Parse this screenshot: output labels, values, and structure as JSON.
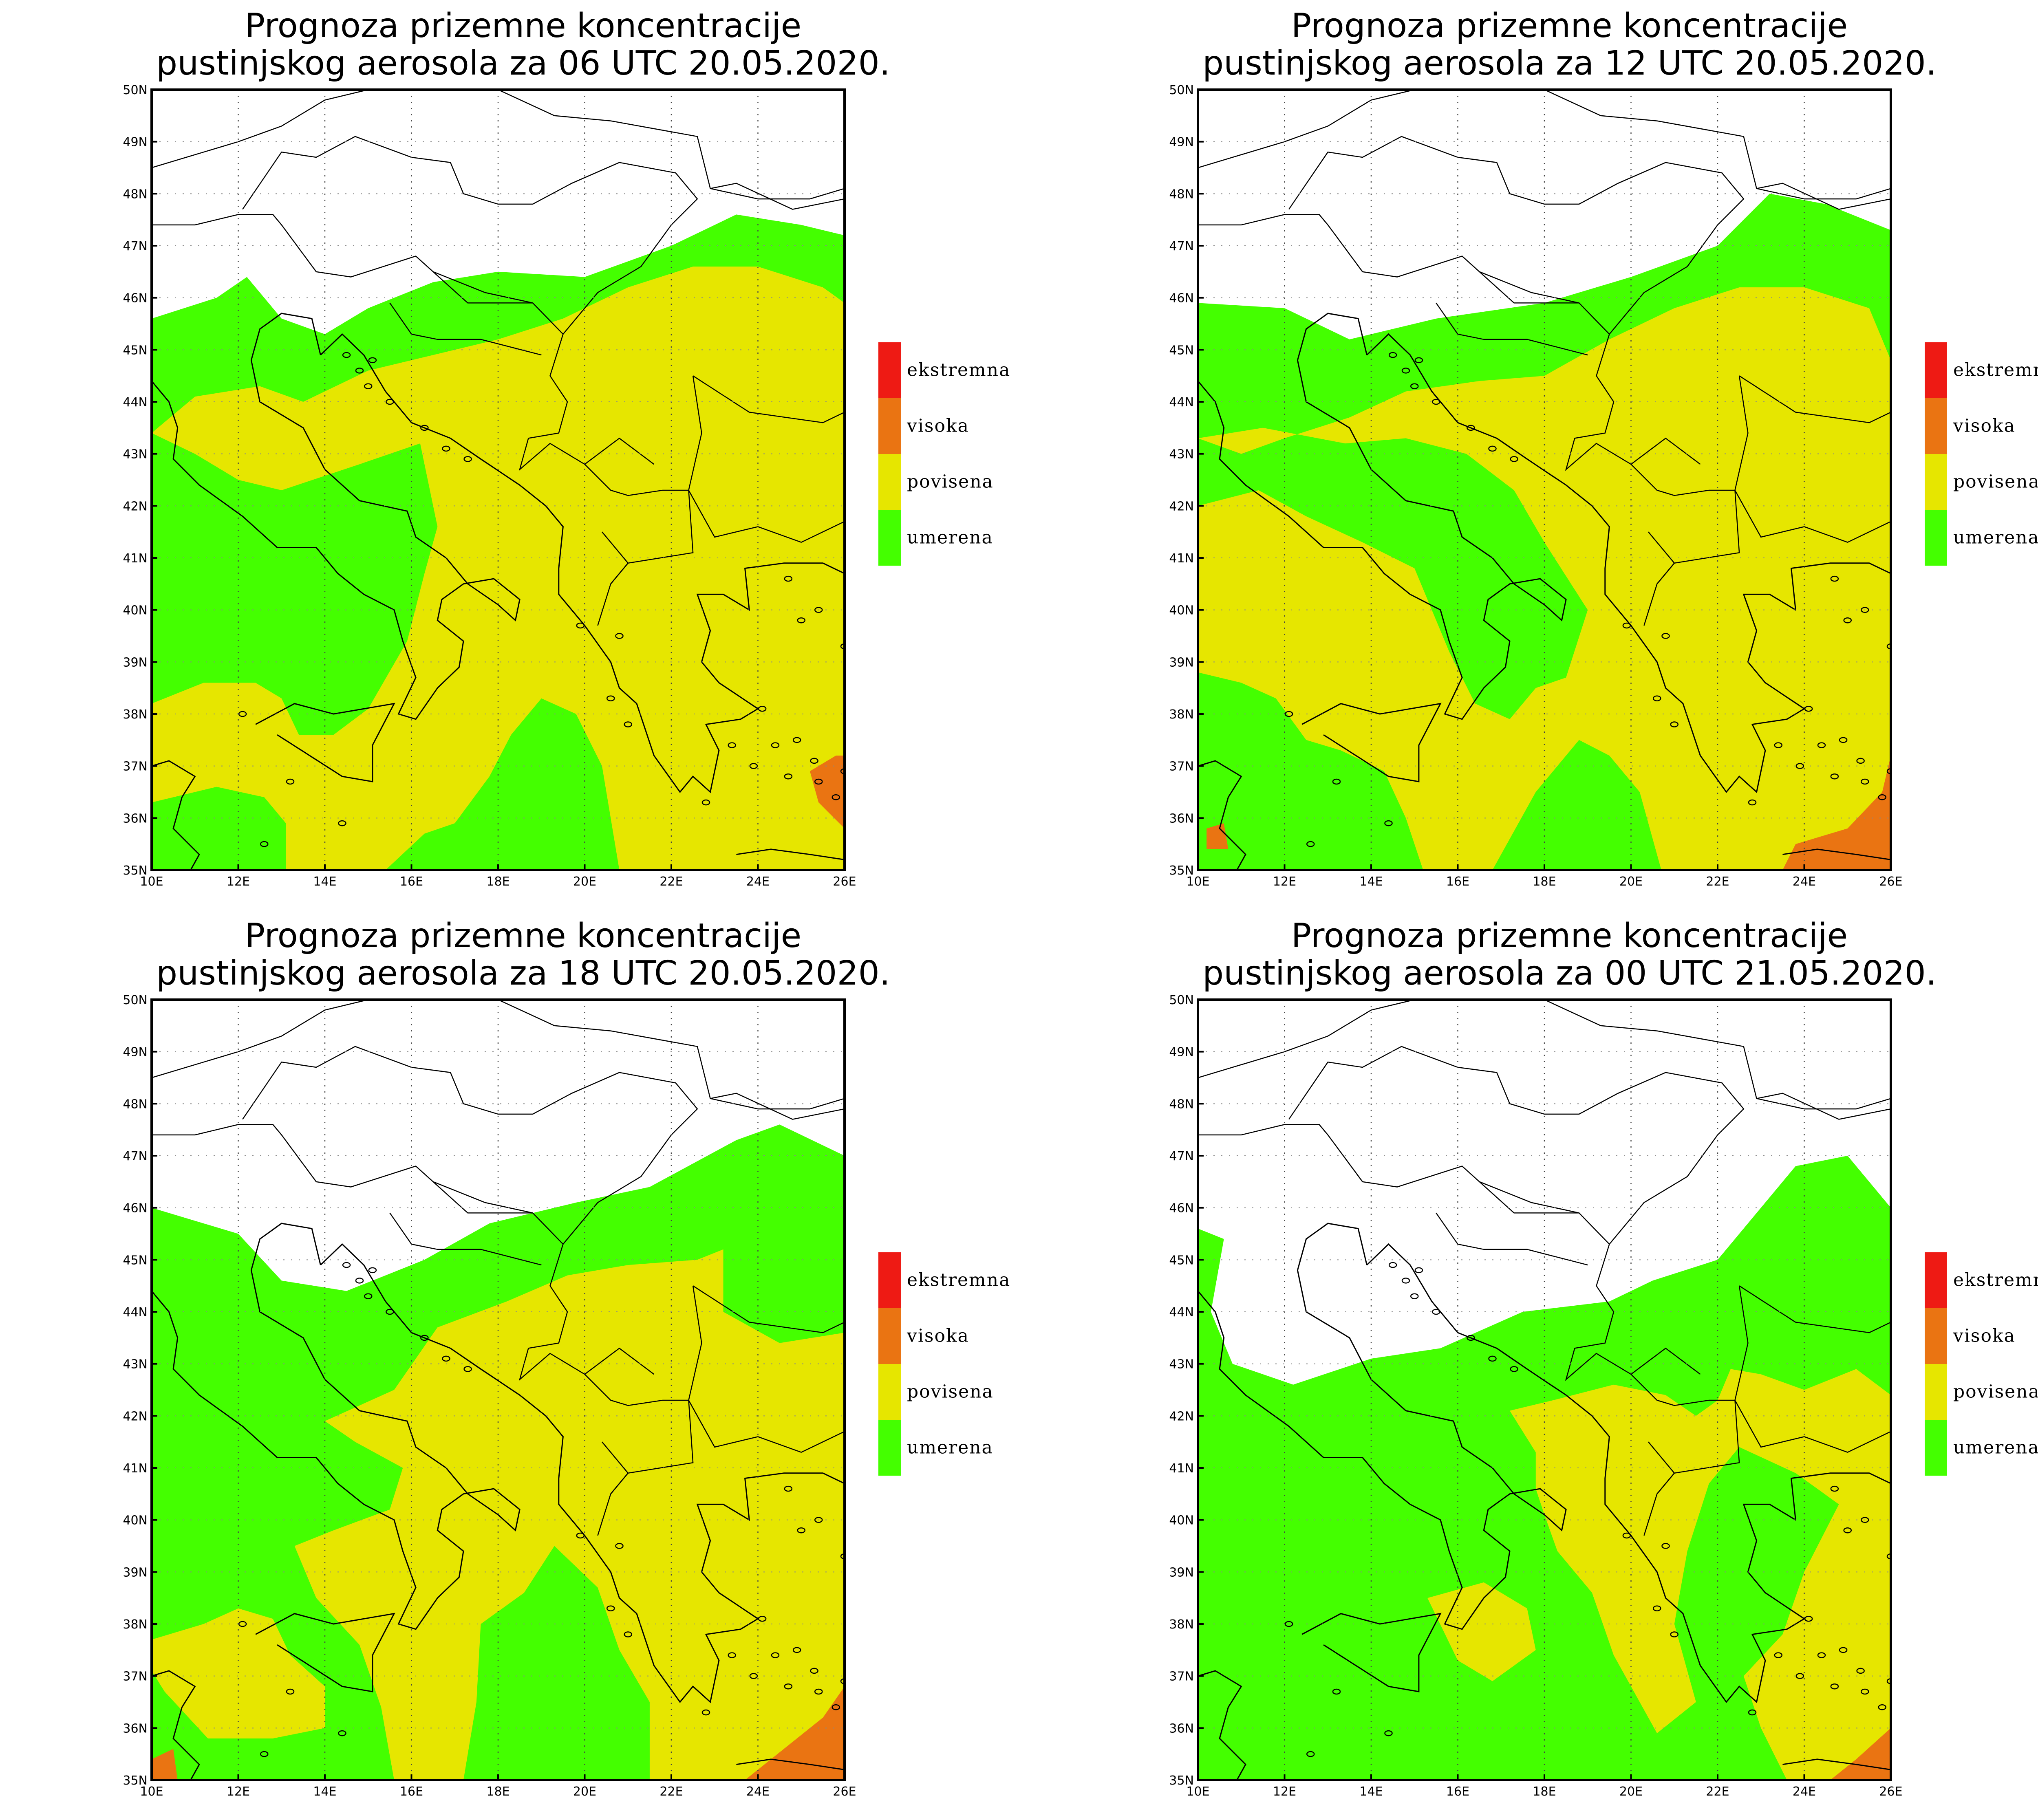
{
  "colors": {
    "ekstremna": "#ee1a14",
    "visoka": "#ea7412",
    "povisena": "#e6e600",
    "umerena": "#44ff00",
    "background": "#ffffff",
    "lines": "#000000"
  },
  "legend": {
    "items": [
      {
        "key": "ekstremna",
        "label": "ekstremna"
      },
      {
        "key": "visoka",
        "label": "visoka"
      },
      {
        "key": "povisena",
        "label": "povisena"
      },
      {
        "key": "umerena",
        "label": "umerena"
      }
    ]
  },
  "axes": {
    "lon_labels": [
      "10E",
      "12E",
      "14E",
      "16E",
      "18E",
      "20E",
      "22E",
      "24E",
      "26E"
    ],
    "lat_labels": [
      "35N",
      "36N",
      "37N",
      "38N",
      "39N",
      "40N",
      "41N",
      "42N",
      "43N",
      "44N",
      "45N",
      "46N",
      "47N",
      "48N",
      "49N",
      "50N"
    ],
    "lon_range": [
      10,
      26
    ],
    "lat_range": [
      35,
      50
    ]
  },
  "panels": [
    {
      "title_line1": "Prognoza prizemne koncentracije",
      "title_line2": "pustinjskog aerosola za 06 UTC 20.05.2020."
    },
    {
      "title_line1": "Prognoza prizemne koncentracije",
      "title_line2": "pustinjskog aerosola za 12 UTC 20.05.2020."
    },
    {
      "title_line1": "Prognoza prizemne koncentracije",
      "title_line2": "pustinjskog aerosola za 18 UTC 20.05.2020."
    },
    {
      "title_line1": "Prognoza prizemne koncentracije",
      "title_line2": "pustinjskog aerosola za 00 UTC 21.05.2020."
    }
  ]
}
